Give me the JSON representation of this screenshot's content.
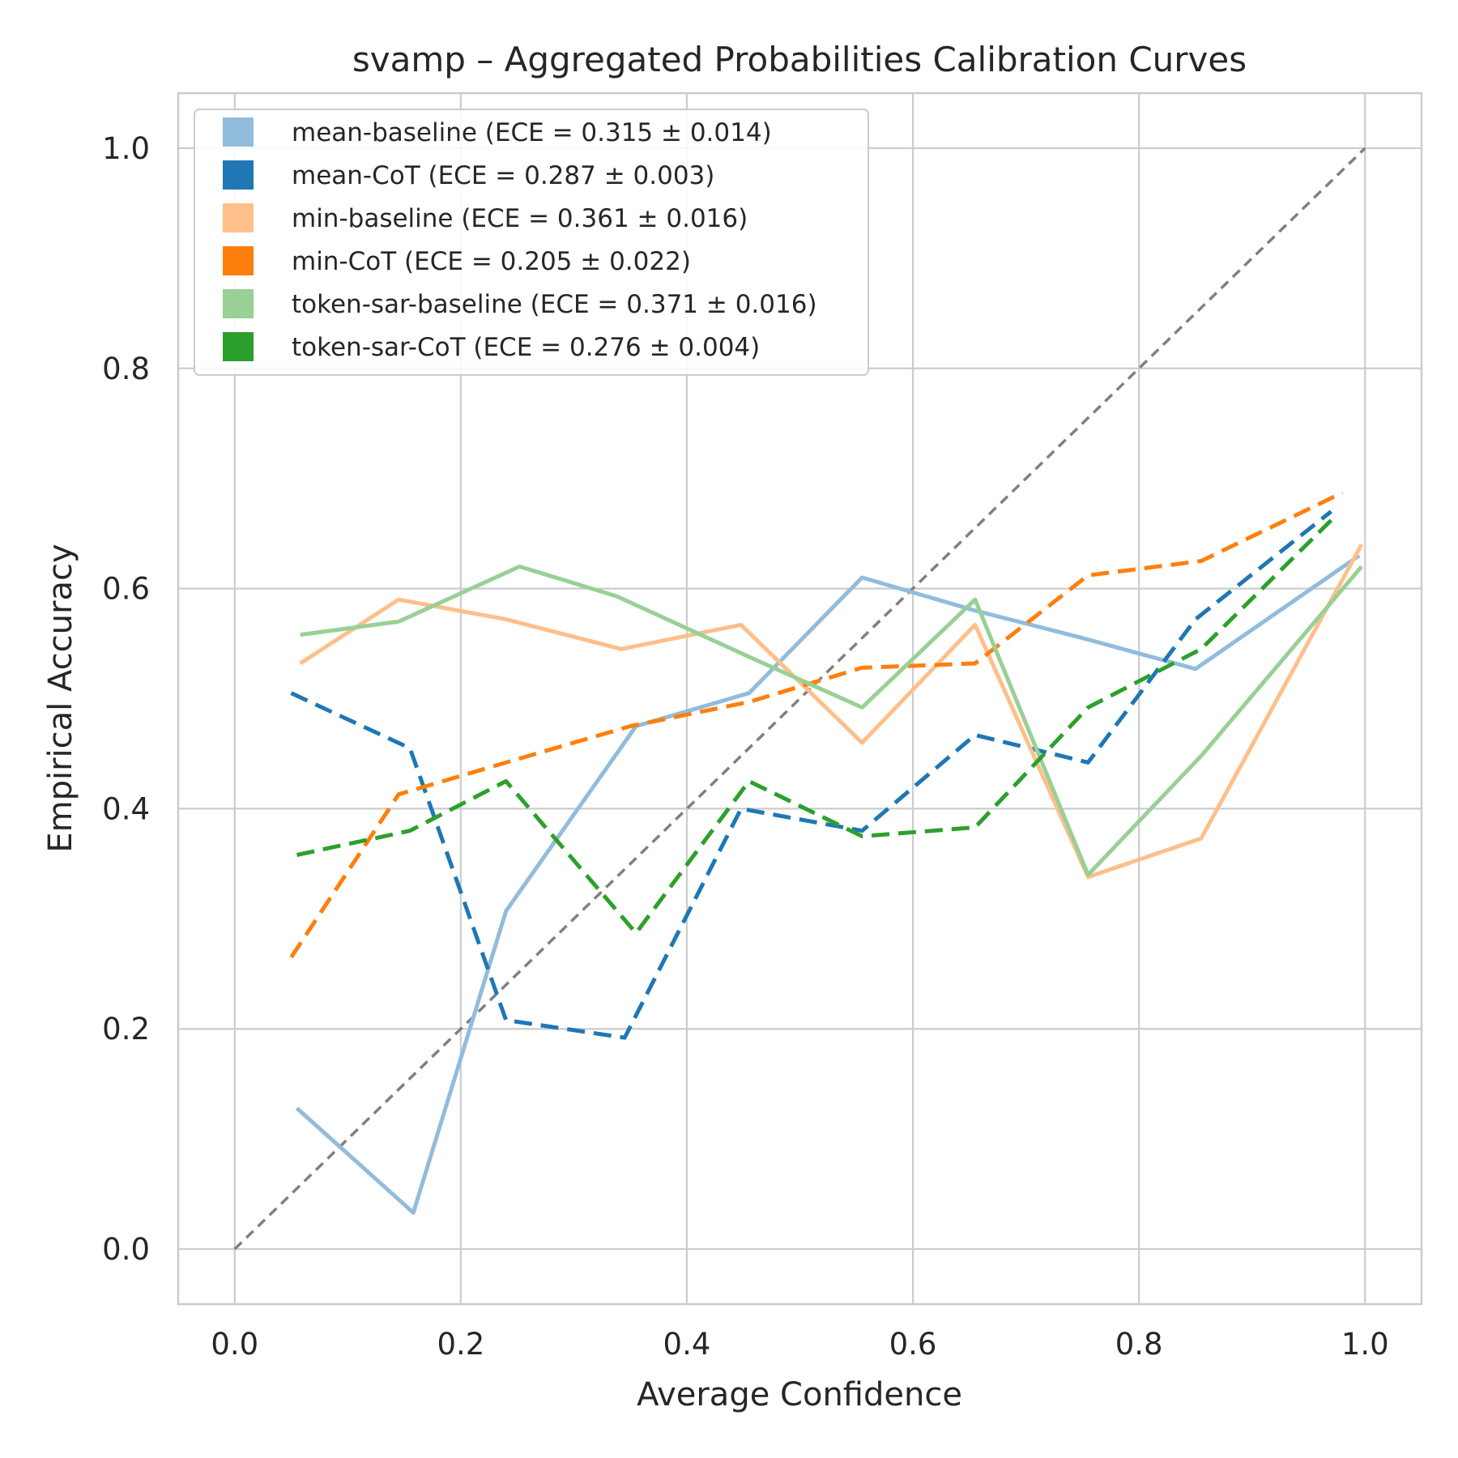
{
  "chart_data": {
    "type": "line",
    "title": "svamp – Aggregated Probabilities Calibration Curves",
    "xlabel": "Average Confidence",
    "ylabel": "Empirical Accuracy",
    "xlim": [
      -0.05,
      1.05
    ],
    "ylim": [
      -0.05,
      1.05
    ],
    "xticks": [
      "0.0",
      "0.2",
      "0.4",
      "0.6",
      "0.8",
      "1.0"
    ],
    "yticks": [
      "0.0",
      "0.2",
      "0.4",
      "0.6",
      "0.8",
      "1.0"
    ],
    "grid": true,
    "legend_position": "top-left",
    "diagonal": {
      "x": [
        0,
        1
      ],
      "y": [
        0,
        1
      ],
      "color": "#808080",
      "style": "dashed"
    },
    "series": [
      {
        "name": "mean-baseline (ECE = 0.315 ± 0.014)",
        "color": "#92bcdc",
        "style": "solid",
        "x": [
          0.055,
          0.158,
          0.24,
          0.355,
          0.455,
          0.555,
          0.655,
          0.75,
          0.85,
          0.995
        ],
        "y": [
          0.128,
          0.033,
          0.307,
          0.475,
          0.505,
          0.61,
          0.58,
          0.555,
          0.527,
          0.63
        ]
      },
      {
        "name": "mean-CoT (ECE = 0.287 ± 0.003)",
        "color": "#1f77b4",
        "style": "dashed",
        "x": [
          0.05,
          0.155,
          0.24,
          0.345,
          0.448,
          0.555,
          0.655,
          0.755,
          0.85,
          0.97
        ],
        "y": [
          0.505,
          0.455,
          0.208,
          0.192,
          0.4,
          0.38,
          0.467,
          0.442,
          0.572,
          0.67
        ]
      },
      {
        "name": "min-baseline (ECE = 0.361 ± 0.016)",
        "color": "#ffbf8a",
        "style": "solid",
        "x": [
          0.058,
          0.145,
          0.24,
          0.342,
          0.448,
          0.555,
          0.655,
          0.755,
          0.855,
          0.997
        ],
        "y": [
          0.532,
          0.59,
          0.572,
          0.545,
          0.567,
          0.46,
          0.567,
          0.338,
          0.373,
          0.64
        ]
      },
      {
        "name": "min-CoT (ECE = 0.205 ± 0.022)",
        "color": "#ff7f0e",
        "style": "dashed",
        "x": [
          0.05,
          0.145,
          0.25,
          0.35,
          0.455,
          0.555,
          0.655,
          0.755,
          0.855,
          0.98
        ],
        "y": [
          0.265,
          0.413,
          0.445,
          0.475,
          0.497,
          0.528,
          0.532,
          0.612,
          0.625,
          0.687
        ]
      },
      {
        "name": "token-sar-baseline (ECE = 0.371 ± 0.016)",
        "color": "#98d095",
        "style": "solid",
        "x": [
          0.058,
          0.145,
          0.252,
          0.338,
          0.455,
          0.555,
          0.655,
          0.755,
          0.855,
          0.997
        ],
        "y": [
          0.558,
          0.57,
          0.62,
          0.593,
          0.538,
          0.492,
          0.59,
          0.34,
          0.448,
          0.62
        ]
      },
      {
        "name": "token-sar-CoT (ECE = 0.276 ± 0.004)",
        "color": "#2ca02c",
        "style": "dashed",
        "x": [
          0.055,
          0.155,
          0.24,
          0.355,
          0.455,
          0.555,
          0.655,
          0.755,
          0.855,
          0.97
        ],
        "y": [
          0.358,
          0.38,
          0.425,
          0.287,
          0.425,
          0.375,
          0.383,
          0.492,
          0.545,
          0.662
        ]
      }
    ]
  }
}
